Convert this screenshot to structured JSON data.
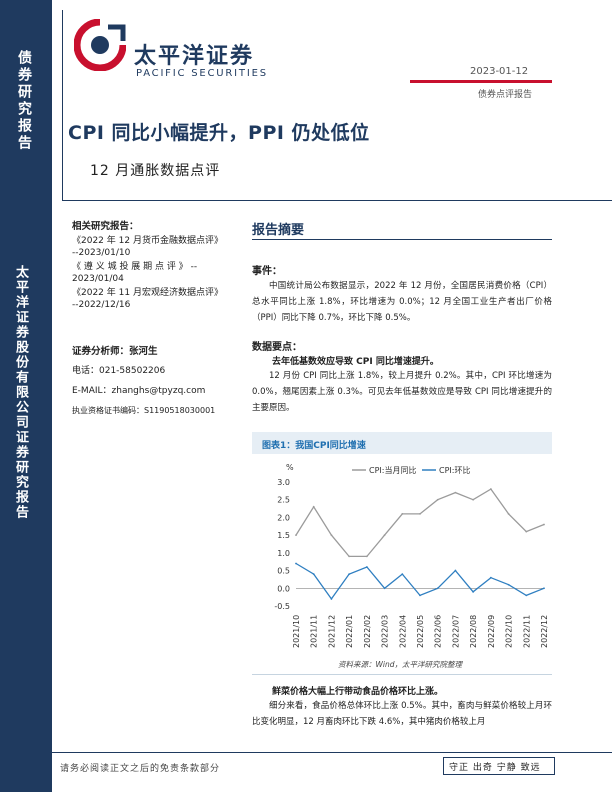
{
  "side": {
    "top_label": "债券研究报告",
    "bottom_label": "太平洋证券股份有限公司证券研究报告"
  },
  "header": {
    "logo_cn": "太平洋证券",
    "logo_en": "PACIFIC SECURITIES",
    "date": "2023-01-12",
    "report_type": "债券点评报告",
    "title": "CPI 同比小幅提升，PPI 仍处低位",
    "subtitle": "12 月通胀数据点评"
  },
  "info": {
    "related_heading": "相关研究报告：",
    "related": [
      "《2022 年 12 月货币金融数据点评》",
      "--2023/01/10",
      "《 遵 义 城 投 展 期 点 评 》 --",
      "2023/01/04",
      "《2022 年 11 月宏观经济数据点评》",
      "--2022/12/16"
    ],
    "analyst_label": "证券分析师：张河生",
    "phone": "电话：021-58502206",
    "email": "E-MAIL：zhanghs@tpyzq.com",
    "license": "执业资格证书编码：S1190518030001"
  },
  "summary": {
    "heading": "报告摘要",
    "event_heading": "事件：",
    "event_text": "中国统计局公布数据显示，2022 年 12 月份，全国居民消费价格（CPI）总水平同比上涨 1.8%，环比增速为 0.0%；12 月全国工业生产者出厂价格（PPI）同比下降 0.7%，环比下降 0.5%。",
    "points_heading": "数据要点：",
    "point1_heading": "去年低基数效应导致 CPI 同比增速提升。",
    "point1_text": "12 月份 CPI 同比上涨 1.8%，较上月提升 0.2%。其中，CPI 环比增速为 0.0%，翘尾因素上涨 0.3%。可见去年低基数效应是导致 CPI 同比增速提升的主要原因。",
    "point2_heading": "鲜菜价格大幅上行带动食品价格环比上涨。",
    "point2_text": "细分来看，食品价格总体环比上涨 0.5%。其中，畜肉与鲜菜价格较上月环比变化明显，12 月畜肉环比下跌 4.6%，其中猪肉价格较上月"
  },
  "chart": {
    "label": "图表1：我国CPI同比增速",
    "source": "资料来源：Wind，太平洋研究院整理"
  },
  "colors": {
    "navy": "#1f3a5f",
    "red": "#c8102e",
    "series_yoy": "#9b9b9b",
    "series_mom": "#2f7fc1"
  },
  "chart_data": {
    "type": "line",
    "title": "",
    "ylabel": "%",
    "ylim": [
      -0.5,
      3.0
    ],
    "yticks": [
      "3.0",
      "2.5",
      "2.0",
      "1.5",
      "1.0",
      "0.5",
      "0.0",
      "-0.5"
    ],
    "x": [
      "2021/10",
      "2021/11",
      "2021/12",
      "2022/01",
      "2022/02",
      "2022/03",
      "2022/04",
      "2022/05",
      "2022/06",
      "2022/07",
      "2022/08",
      "2022/09",
      "2022/10",
      "2022/11",
      "2022/12"
    ],
    "series": [
      {
        "name": "CPI:当月同比",
        "values": [
          1.5,
          2.3,
          1.5,
          0.9,
          0.9,
          1.5,
          2.1,
          2.1,
          2.5,
          2.7,
          2.5,
          2.8,
          2.1,
          1.6,
          1.8
        ]
      },
      {
        "name": "CPI:环比",
        "values": [
          0.7,
          0.4,
          -0.3,
          0.4,
          0.6,
          0.0,
          0.4,
          -0.2,
          0.0,
          0.5,
          -0.1,
          0.3,
          0.1,
          -0.2,
          0.0
        ]
      }
    ],
    "legend": "top"
  },
  "footer": {
    "disclaimer": "请务必阅读正文之后的免责条款部分",
    "motto": "守正 出奇 宁静 致远"
  }
}
